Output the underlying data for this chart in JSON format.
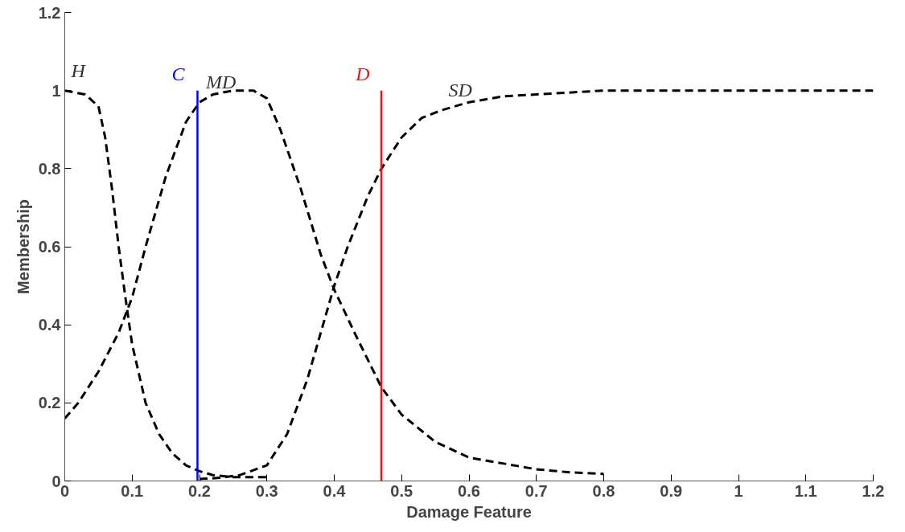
{
  "chart_data": {
    "type": "line",
    "xlabel": "Damage Feature",
    "ylabel": "Membership",
    "xlim": [
      0,
      1.2
    ],
    "ylim": [
      0,
      1.2
    ],
    "xticks": [
      0,
      0.1,
      0.2,
      0.3,
      0.4,
      0.5,
      0.6,
      0.7,
      0.8,
      0.9,
      1,
      1.1,
      1.2
    ],
    "yticks": [
      0,
      0.2,
      0.4,
      0.6,
      0.8,
      1,
      1.2
    ],
    "grid": false,
    "line_style": "dashed",
    "marker": "none",
    "series": [
      {
        "name": "H",
        "color": "#000000",
        "x": [
          0,
          0.03,
          0.05,
          0.06,
          0.07,
          0.08,
          0.09,
          0.1,
          0.12,
          0.14,
          0.16,
          0.18,
          0.2,
          0.22,
          0.25,
          0.3
        ],
        "values": [
          1.0,
          0.99,
          0.96,
          0.88,
          0.75,
          0.6,
          0.47,
          0.35,
          0.2,
          0.12,
          0.07,
          0.04,
          0.025,
          0.015,
          0.01,
          0.01
        ]
      },
      {
        "name": "MD",
        "color": "#000000",
        "x": [
          0,
          0.02,
          0.05,
          0.08,
          0.1,
          0.12,
          0.15,
          0.18,
          0.2,
          0.22,
          0.25,
          0.28,
          0.3,
          0.32,
          0.35,
          0.38,
          0.4,
          0.43,
          0.45,
          0.47,
          0.5,
          0.55,
          0.6,
          0.65,
          0.7,
          0.75,
          0.8
        ],
        "values": [
          0.16,
          0.2,
          0.28,
          0.38,
          0.47,
          0.6,
          0.78,
          0.92,
          0.97,
          0.99,
          1.0,
          1.0,
          0.98,
          0.9,
          0.75,
          0.58,
          0.49,
          0.38,
          0.31,
          0.24,
          0.17,
          0.1,
          0.06,
          0.045,
          0.03,
          0.022,
          0.018
        ]
      },
      {
        "name": "SD",
        "color": "#000000",
        "x": [
          0.2,
          0.23,
          0.26,
          0.3,
          0.33,
          0.36,
          0.38,
          0.4,
          0.42,
          0.45,
          0.47,
          0.5,
          0.53,
          0.56,
          0.6,
          0.65,
          0.7,
          0.8,
          0.9,
          1.0,
          1.1,
          1.2
        ],
        "values": [
          0.005,
          0.008,
          0.015,
          0.04,
          0.12,
          0.26,
          0.38,
          0.5,
          0.6,
          0.73,
          0.8,
          0.88,
          0.93,
          0.95,
          0.97,
          0.985,
          0.99,
          1.0,
          1.0,
          1.0,
          1.0,
          1.0
        ]
      }
    ],
    "ref_lines": [
      {
        "axis": "x",
        "value": 0.197,
        "label": "C",
        "color": "#0000ff"
      },
      {
        "axis": "x",
        "value": 0.47,
        "label": "D",
        "color": "#e8141b"
      }
    ]
  }
}
